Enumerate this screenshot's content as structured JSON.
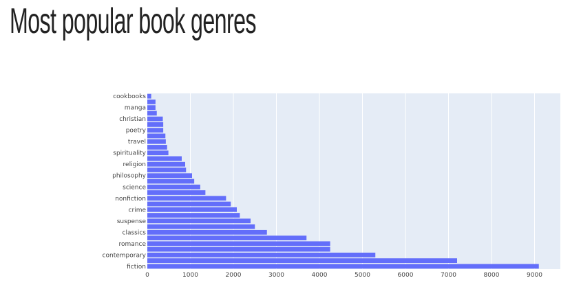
{
  "title": "Most popular book genres",
  "chart_data": {
    "type": "bar",
    "orientation": "horizontal",
    "categories": [
      "fiction",
      "",
      "contemporary",
      "",
      "romance",
      "",
      "classics",
      "",
      "suspense",
      "",
      "crime",
      "",
      "nonfiction",
      "",
      "science",
      "",
      "philosophy",
      "",
      "religion",
      "",
      "spirituality",
      "",
      "travel",
      "",
      "poetry",
      "",
      "christian",
      "",
      "manga",
      "",
      "cookbooks"
    ],
    "values": [
      9100,
      7200,
      5300,
      4250,
      4250,
      3700,
      2780,
      2500,
      2400,
      2150,
      2080,
      1940,
      1830,
      1350,
      1230,
      1090,
      1040,
      900,
      880,
      800,
      490,
      460,
      430,
      420,
      370,
      370,
      360,
      220,
      190,
      190,
      90
    ],
    "xticks": [
      "0",
      "1000",
      "2000",
      "3000",
      "4000",
      "5000",
      "6000",
      "7000",
      "8000",
      "9000"
    ],
    "xlim": [
      0,
      9600
    ],
    "bar_color": "#636efa",
    "plot_bg": "#e5ecf6",
    "grid": true
  }
}
